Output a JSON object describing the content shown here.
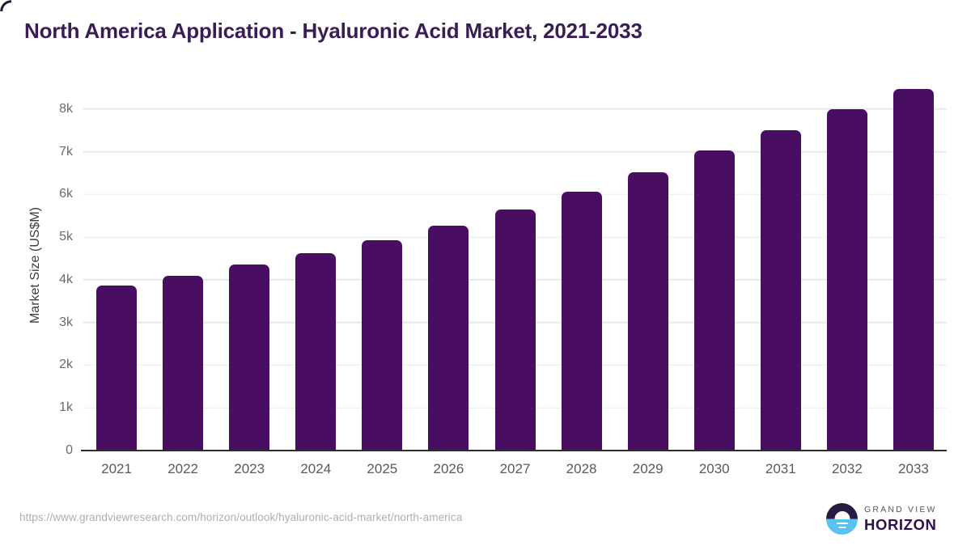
{
  "header": {
    "title": "North America Application - Hyaluronic Acid Market, 2021-2033"
  },
  "chart_data": {
    "type": "bar",
    "title": "North America Application - Hyaluronic Acid Market, 2021-2033",
    "categories": [
      "2021",
      "2022",
      "2023",
      "2024",
      "2025",
      "2026",
      "2027",
      "2028",
      "2029",
      "2030",
      "2031",
      "2032",
      "2033"
    ],
    "values": [
      3870,
      4100,
      4350,
      4620,
      4930,
      5270,
      5640,
      6070,
      6520,
      7040,
      7510,
      8000,
      8470
    ],
    "xlabel": "",
    "ylabel": "Market Size (US$M)",
    "ylim": [
      0,
      8660
    ],
    "ytick_step": 1000,
    "ytick_labels": [
      "0",
      "1k",
      "2k",
      "3k",
      "4k",
      "5k",
      "6k",
      "7k",
      "8k"
    ],
    "grid": "horizontal",
    "legend": "none",
    "bar_color": "#490e61"
  },
  "colors": {
    "title_text": "#3a1d55",
    "bar": "#490e61",
    "gridline": "#e8e8e8",
    "axis_line": "#2d2d2d",
    "y_tick_text": "#6a6a6a",
    "x_tick_text": "#58595b",
    "url_text": "#aeaeae",
    "logo_dark": "#281a43",
    "logo_blue": "#5ac2f0",
    "logo_gray_text": "#55545c",
    "logo_purple_text": "#2f0f4d"
  },
  "footer": {
    "source_url": "https://www.grandviewresearch.com/horizon/outlook/hyaluronic-acid-market/north-america",
    "logo": {
      "line1": "GRAND VIEW",
      "line2": "HORIZON"
    }
  }
}
